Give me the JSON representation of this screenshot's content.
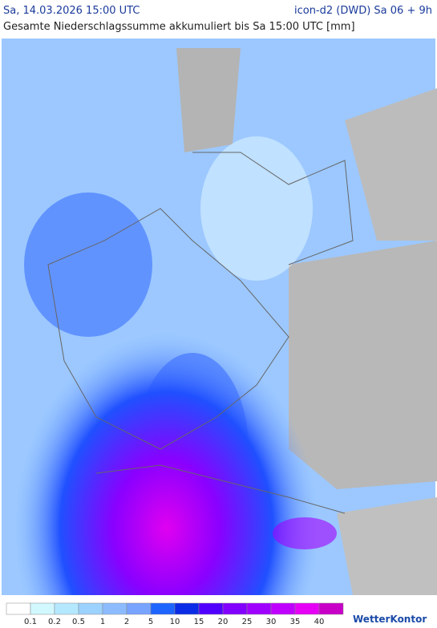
{
  "header": {
    "datetime": "Sa, 14.03.2026 15:00 UTC",
    "model": "icon-d2 (DWD) Sa 06 + 9h",
    "title": "Gesamte Niederschlagssumme akkumuliert bis Sa 15:00 UTC [mm]"
  },
  "legend": {
    "colors": [
      "#ffffff",
      "#d2f8ff",
      "#b4e8ff",
      "#9cd2ff",
      "#8cbcff",
      "#78a4ff",
      "#1e64ff",
      "#0a2ce6",
      "#5000ff",
      "#8200ff",
      "#a000ff",
      "#c000ff",
      "#e600f5",
      "#c800c8"
    ],
    "labels": [
      "0.1",
      "0.2",
      "0.5",
      "1",
      "2",
      "5",
      "10",
      "15",
      "20",
      "25",
      "30",
      "35",
      "40"
    ]
  },
  "brand": "WetterKontor"
}
